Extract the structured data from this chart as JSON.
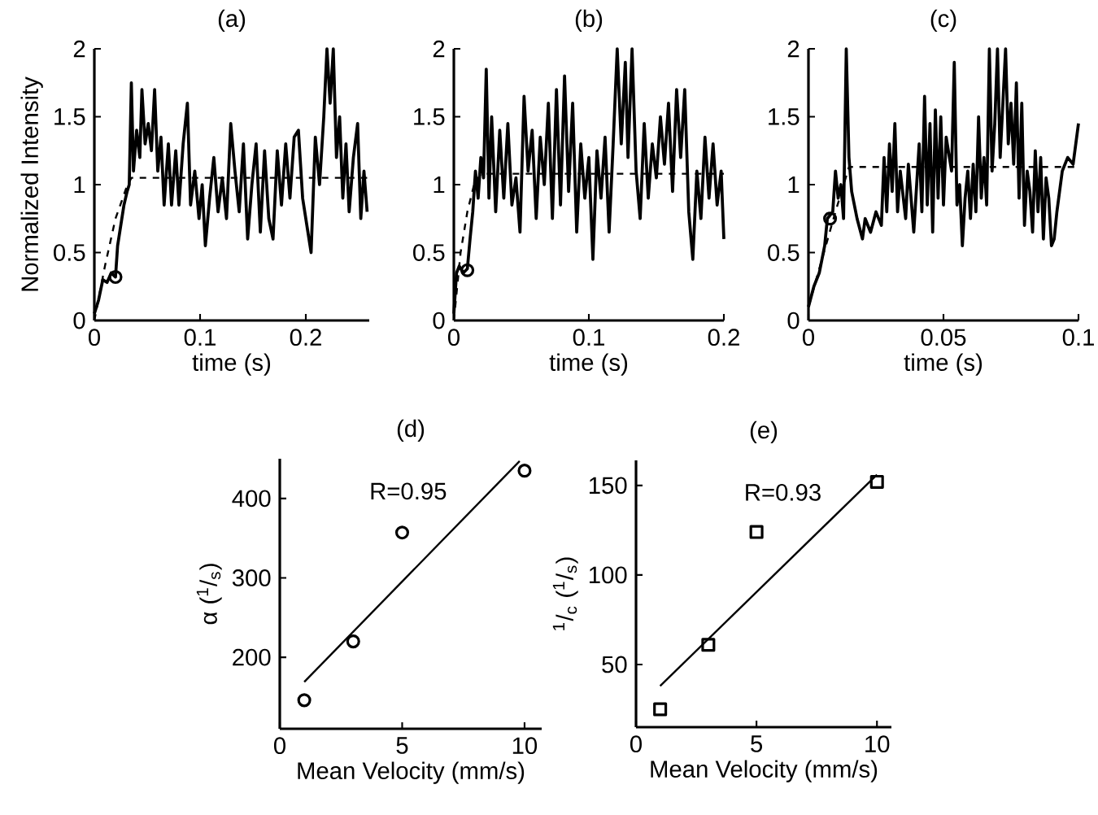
{
  "chart_data": [
    {
      "type": "line",
      "title": "(a)",
      "xlabel": "time (s)",
      "ylabel": "Normalized Intensity",
      "xlim": [
        0,
        0.26
      ],
      "ylim": [
        0,
        2
      ],
      "xticks": [
        0,
        0.1,
        0.2
      ],
      "yticks": [
        0,
        0.5,
        1,
        1.5,
        2
      ],
      "series": [
        {
          "line_style": "solid",
          "color": "#000000",
          "x": [
            0,
            0.004,
            0.008,
            0.012,
            0.016,
            0.02,
            0.022,
            0.025,
            0.028,
            0.031,
            0.033,
            0.035,
            0.037,
            0.04,
            0.043,
            0.045,
            0.048,
            0.051,
            0.054,
            0.057,
            0.06,
            0.063,
            0.066,
            0.07,
            0.073,
            0.077,
            0.08,
            0.084,
            0.088,
            0.091,
            0.095,
            0.099,
            0.102,
            0.105,
            0.109,
            0.113,
            0.117,
            0.121,
            0.125,
            0.129,
            0.133,
            0.137,
            0.141,
            0.145,
            0.149,
            0.153,
            0.157,
            0.161,
            0.165,
            0.169,
            0.173,
            0.177,
            0.181,
            0.185,
            0.189,
            0.193,
            0.197,
            0.201,
            0.205,
            0.209,
            0.213,
            0.217,
            0.22,
            0.223,
            0.226,
            0.229,
            0.232,
            0.235,
            0.238,
            0.241,
            0.245,
            0.249,
            0.252,
            0.255,
            0.258
          ],
          "values": [
            0.05,
            0.15,
            0.3,
            0.28,
            0.35,
            0.32,
            0.55,
            0.7,
            0.85,
            0.95,
            1.0,
            1.75,
            1.1,
            1.4,
            1.2,
            1.7,
            1.3,
            1.45,
            1.25,
            1.7,
            1.1,
            1.35,
            0.85,
            1.3,
            0.85,
            1.25,
            0.85,
            1.3,
            1.6,
            0.85,
            1.1,
            0.75,
            1.0,
            0.55,
            0.9,
            1.2,
            0.8,
            1.05,
            0.75,
            1.45,
            1.1,
            0.8,
            1.3,
            0.6,
            1.0,
            1.3,
            0.65,
            1.25,
            0.75,
            0.6,
            1.25,
            0.85,
            1.3,
            0.9,
            1.35,
            1.4,
            0.9,
            0.7,
            0.5,
            1.35,
            1.0,
            1.5,
            2.0,
            1.6,
            2.0,
            1.2,
            1.5,
            0.9,
            1.3,
            0.8,
            1.2,
            1.45,
            0.75,
            1.1,
            0.8
          ]
        },
        {
          "line_style": "dashed",
          "color": "#000000",
          "x": [
            0,
            0.01,
            0.02,
            0.03,
            0.035,
            0.258
          ],
          "values": [
            0,
            0.4,
            0.75,
            0.97,
            1.05,
            1.05
          ]
        },
        {
          "type": "scatter",
          "marker": "circle",
          "color": "#000000",
          "x": [
            0.02
          ],
          "values": [
            0.32
          ]
        }
      ]
    },
    {
      "type": "line",
      "title": "(b)",
      "xlabel": "time (s)",
      "xlim": [
        0,
        0.2
      ],
      "ylim": [
        0,
        2
      ],
      "xticks": [
        0,
        0.1,
        0.2
      ],
      "yticks": [
        0,
        0.5,
        1,
        1.5,
        2
      ],
      "series": [
        {
          "line_style": "solid",
          "color": "#000000",
          "x": [
            0,
            0.002,
            0.004,
            0.007,
            0.01,
            0.012,
            0.014,
            0.016,
            0.018,
            0.02,
            0.022,
            0.024,
            0.026,
            0.028,
            0.031,
            0.034,
            0.037,
            0.04,
            0.043,
            0.046,
            0.049,
            0.052,
            0.055,
            0.058,
            0.061,
            0.064,
            0.067,
            0.07,
            0.073,
            0.076,
            0.079,
            0.082,
            0.085,
            0.088,
            0.091,
            0.094,
            0.097,
            0.1,
            0.103,
            0.106,
            0.109,
            0.112,
            0.115,
            0.118,
            0.121,
            0.124,
            0.127,
            0.129,
            0.132,
            0.135,
            0.138,
            0.141,
            0.144,
            0.147,
            0.15,
            0.153,
            0.156,
            0.159,
            0.162,
            0.165,
            0.168,
            0.171,
            0.174,
            0.177,
            0.18,
            0.183,
            0.186,
            0.189,
            0.192,
            0.195,
            0.198,
            0.2
          ],
          "values": [
            0.05,
            0.35,
            0.4,
            0.35,
            0.38,
            0.6,
            0.8,
            1.1,
            0.9,
            1.2,
            1.05,
            1.85,
            0.9,
            1.5,
            0.8,
            1.4,
            0.9,
            1.45,
            0.85,
            1.05,
            0.65,
            1.65,
            1.1,
            1.4,
            0.75,
            1.35,
            1.0,
            1.6,
            0.75,
            1.7,
            0.85,
            1.8,
            0.95,
            1.6,
            0.65,
            1.3,
            0.9,
            1.2,
            0.45,
            1.25,
            0.9,
            1.35,
            0.65,
            1.3,
            2.0,
            1.3,
            1.9,
            1.2,
            2.0,
            1.1,
            0.75,
            1.45,
            0.9,
            1.3,
            1.05,
            1.5,
            1.15,
            1.6,
            0.95,
            1.7,
            1.2,
            1.7,
            0.8,
            0.45,
            1.1,
            0.75,
            1.35,
            0.9,
            1.3,
            0.85,
            1.1,
            0.6
          ]
        },
        {
          "line_style": "dashed",
          "color": "#000000",
          "x": [
            0,
            0.005,
            0.01,
            0.015,
            0.02,
            0.2
          ],
          "values": [
            0,
            0.5,
            0.8,
            1.0,
            1.08,
            1.08
          ]
        },
        {
          "type": "scatter",
          "marker": "circle",
          "color": "#000000",
          "x": [
            0.01
          ],
          "values": [
            0.37
          ]
        }
      ]
    },
    {
      "type": "line",
      "title": "(c)",
      "xlabel": "time (s)",
      "xlim": [
        0,
        0.1
      ],
      "ylim": [
        0,
        2
      ],
      "xticks": [
        0,
        0.05,
        0.1
      ],
      "yticks": [
        0,
        0.5,
        1,
        1.5,
        2
      ],
      "series": [
        {
          "line_style": "solid",
          "color": "#000000",
          "x": [
            0,
            0.002,
            0.004,
            0.006,
            0.007,
            0.009,
            0.01,
            0.011,
            0.012,
            0.013,
            0.014,
            0.015,
            0.016,
            0.018,
            0.02,
            0.021,
            0.023,
            0.025,
            0.027,
            0.028,
            0.029,
            0.03,
            0.031,
            0.032,
            0.033,
            0.034,
            0.036,
            0.037,
            0.038,
            0.039,
            0.041,
            0.042,
            0.043,
            0.044,
            0.045,
            0.046,
            0.047,
            0.048,
            0.049,
            0.05,
            0.051,
            0.053,
            0.054,
            0.055,
            0.056,
            0.057,
            0.058,
            0.059,
            0.06,
            0.061,
            0.062,
            0.063,
            0.064,
            0.065,
            0.066,
            0.067,
            0.068,
            0.069,
            0.07,
            0.071,
            0.072,
            0.073,
            0.074,
            0.075,
            0.076,
            0.077,
            0.078,
            0.079,
            0.08,
            0.081,
            0.082,
            0.083,
            0.084,
            0.085,
            0.086,
            0.087,
            0.088,
            0.089,
            0.09,
            0.091,
            0.092,
            0.093,
            0.094,
            0.096,
            0.098,
            0.1
          ],
          "values": [
            0.1,
            0.25,
            0.35,
            0.55,
            0.75,
            0.8,
            1.1,
            0.9,
            1.0,
            0.75,
            2.0,
            1.2,
            0.95,
            0.75,
            0.6,
            0.75,
            0.65,
            0.8,
            0.7,
            1.2,
            0.8,
            1.3,
            0.95,
            1.45,
            0.8,
            1.1,
            0.75,
            1.15,
            0.9,
            0.65,
            1.3,
            0.8,
            1.65,
            0.85,
            1.45,
            0.65,
            1.55,
            0.9,
            1.5,
            0.85,
            1.35,
            1.1,
            1.9,
            0.85,
            1.0,
            0.55,
            0.9,
            1.1,
            0.75,
            1.15,
            0.8,
            1.5,
            0.9,
            1.2,
            0.85,
            2.0,
            1.1,
            1.45,
            2.0,
            1.2,
            1.6,
            2.0,
            1.3,
            1.6,
            1.15,
            1.75,
            0.9,
            1.6,
            0.7,
            1.1,
            0.95,
            0.65,
            1.25,
            0.8,
            1.2,
            0.6,
            1.05,
            0.9,
            0.55,
            0.6,
            0.8,
            0.95,
            1.1,
            1.2,
            1.15,
            1.45
          ]
        },
        {
          "line_style": "dashed",
          "color": "#000000",
          "x": [
            0,
            0.005,
            0.01,
            0.015,
            0.1
          ],
          "values": [
            0.1,
            0.45,
            0.8,
            1.13,
            1.13
          ]
        },
        {
          "type": "scatter",
          "marker": "circle",
          "color": "#000000",
          "x": [
            0.008
          ],
          "values": [
            0.75
          ]
        }
      ]
    },
    {
      "type": "scatter",
      "title": "(d)",
      "xlabel": "Mean Velocity (mm/s)",
      "ylabel": "α ($^{1}$/$_{s}$)",
      "xlim": [
        0,
        10.7
      ],
      "ylim": [
        110,
        450
      ],
      "xticks": [
        0,
        5,
        10
      ],
      "yticks": [
        200,
        300,
        400
      ],
      "annotations": [
        "R=0.95"
      ],
      "series": [
        {
          "marker": "circle",
          "color": "#000000",
          "x": [
            1,
            3,
            5,
            10
          ],
          "values": [
            146,
            220,
            357,
            435
          ]
        },
        {
          "type": "line",
          "line_style": "solid",
          "color": "#000000",
          "x": [
            1,
            9.8
          ],
          "values": [
            169,
            447
          ]
        }
      ]
    },
    {
      "type": "scatter",
      "title": "(e)",
      "xlabel": "Mean Velocity (mm/s)",
      "ylabel": "$^{1}$/$_{c}$ ($^{1}$/$_{s}$)",
      "xlim": [
        0,
        10.6
      ],
      "ylim": [
        15,
        164
      ],
      "xticks": [
        0,
        5,
        10
      ],
      "yticks": [
        50,
        100,
        150
      ],
      "annotations": [
        "R=0.93"
      ],
      "series": [
        {
          "marker": "square",
          "color": "#000000",
          "x": [
            1,
            3,
            5,
            10
          ],
          "values": [
            25,
            61,
            124,
            152
          ]
        },
        {
          "type": "line",
          "line_style": "solid",
          "color": "#000000",
          "x": [
            1,
            10
          ],
          "values": [
            38,
            156
          ]
        }
      ]
    }
  ]
}
